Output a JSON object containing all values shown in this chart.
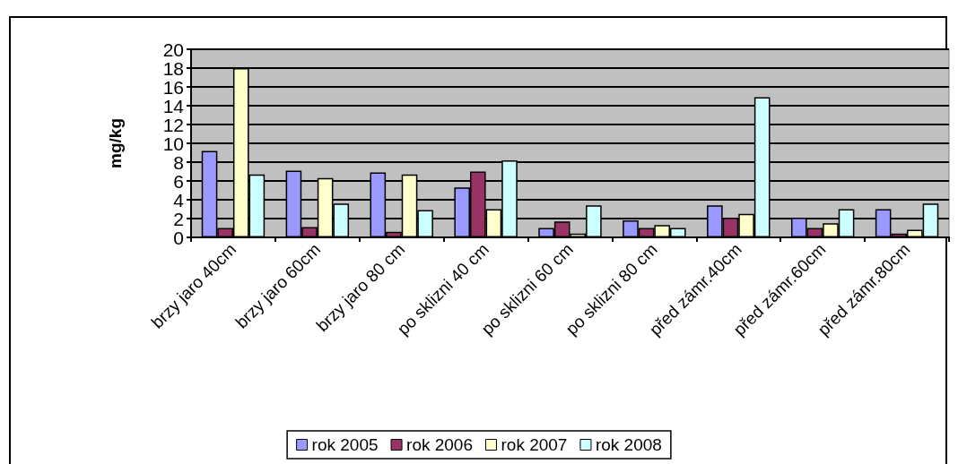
{
  "chart_data": {
    "type": "bar",
    "ylabel": "mg/kg",
    "categories": [
      "brzy jaro 40cm",
      "brzy jaro 60cm",
      "brzy jaro 80 cm",
      "po sklizni 40 cm",
      "po sklizni 60 cm",
      "po sklizni 80 cm",
      "před zámr.40cm",
      "před zámr.60cm",
      "před zámr.80cm"
    ],
    "series": [
      {
        "name": "rok 2005",
        "color": "#9999ff",
        "values": [
          9.2,
          7.1,
          6.9,
          5.3,
          1.0,
          1.8,
          3.4,
          2.1,
          3.0
        ]
      },
      {
        "name": "rok 2006",
        "color": "#993366",
        "values": [
          1.0,
          1.1,
          0.6,
          7.0,
          1.7,
          1.0,
          2.1,
          1.0,
          0.4
        ]
      },
      {
        "name": "rok 2007",
        "color": "#ffffcc",
        "values": [
          18,
          6.3,
          6.7,
          3.0,
          0.4,
          1.3,
          2.5,
          1.5,
          0.8
        ]
      },
      {
        "name": "rok 2008",
        "color": "#ccffff",
        "values": [
          6.7,
          3.6,
          2.9,
          8.2,
          3.4,
          1.0,
          14.9,
          3.0,
          3.6
        ]
      }
    ],
    "ylim": [
      0,
      20
    ],
    "yticks": [
      0,
      2,
      4,
      6,
      8,
      10,
      12,
      14,
      16,
      18,
      20
    ],
    "grid": "y",
    "legend": "bottom"
  }
}
